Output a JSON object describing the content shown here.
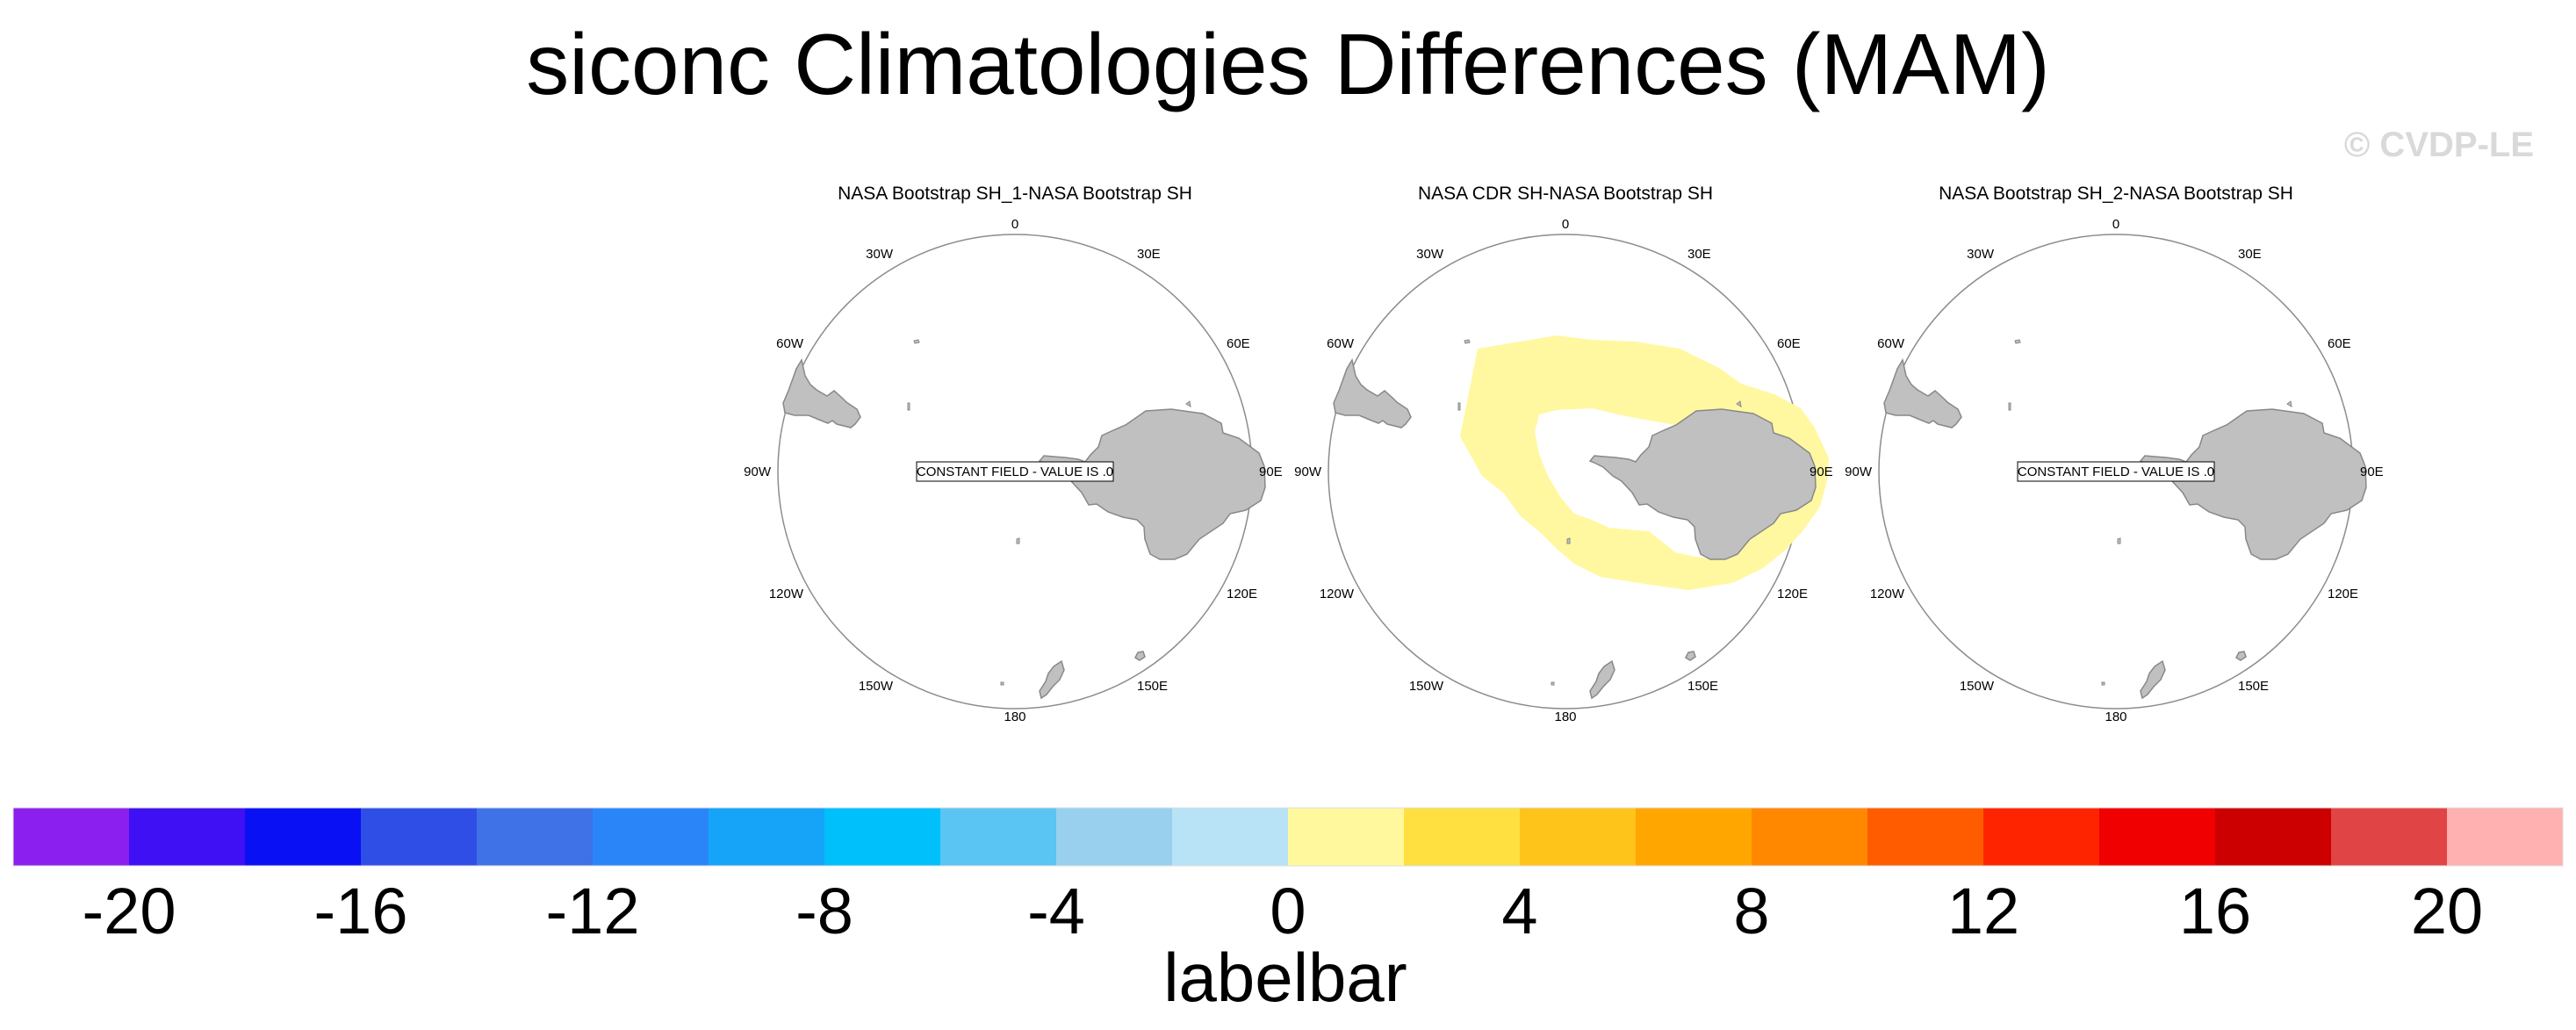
{
  "title": "siconc Climatologies Differences (MAM)",
  "watermark": "© CVDP-LE",
  "panels": [
    {
      "title": "NASA Bootstrap SH_1-NASA Bootstrap SH",
      "constant_label": "CONSTANT FIELD - VALUE IS .0",
      "shaded_ring": false
    },
    {
      "title": "NASA CDR SH-NASA Bootstrap SH",
      "constant_label": "",
      "shaded_ring": true
    },
    {
      "title": "NASA Bootstrap SH_2-NASA Bootstrap SH",
      "constant_label": "CONSTANT FIELD - VALUE IS .0",
      "shaded_ring": false
    }
  ],
  "longitude_labels": {
    "top": "0",
    "bottom": "180",
    "lon30w": "30W",
    "lon30e": "30E",
    "lon60w": "60W",
    "lon60e": "60E",
    "lon90w": "90W",
    "lon90e": "90E",
    "lon120w": "120W",
    "lon120e": "120E",
    "lon150w": "150W",
    "lon150e": "150E"
  },
  "colors": {
    "land": "#c0c0c0",
    "land_edge": "#888888",
    "ring_fill": "#fff8a0",
    "circle": "#8c8c8c"
  },
  "colorbar": {
    "label": "labelbar",
    "colors": [
      "#8a1ff0",
      "#4010f4",
      "#0a10f4",
      "#2f4ee6",
      "#3e72e6",
      "#2a86f8",
      "#16a4f8",
      "#00c0fc",
      "#5ac4f2",
      "#98d0ee",
      "#b8e2f6",
      "#fff89c",
      "#ffe040",
      "#ffc41a",
      "#ffa600",
      "#ff8800",
      "#ff5c00",
      "#ff2400",
      "#f00000",
      "#cc0000",
      "#e04444",
      "#ffb0b0"
    ],
    "tick_labels": [
      "-20",
      "-16",
      "-12",
      "-8",
      "-4",
      "0",
      "4",
      "8",
      "12",
      "16",
      "20"
    ]
  },
  "chart_data": {
    "type": "map",
    "title": "siconc Climatologies Differences (MAM)",
    "projection": "polar stereographic (South Pole)",
    "colorbar_levels": [
      -20,
      -18,
      -16,
      -14,
      -12,
      -10,
      -8,
      -6,
      -4,
      -2,
      0,
      2,
      4,
      6,
      8,
      10,
      12,
      14,
      16,
      18,
      20
    ],
    "panels": [
      {
        "name": "NASA Bootstrap SH_1-NASA Bootstrap SH",
        "value": 0
      },
      {
        "name": "NASA CDR SH-NASA Bootstrap SH",
        "value_range": [
          0,
          2
        ]
      },
      {
        "name": "NASA Bootstrap SH_2-NASA Bootstrap SH",
        "value": 0
      }
    ]
  }
}
